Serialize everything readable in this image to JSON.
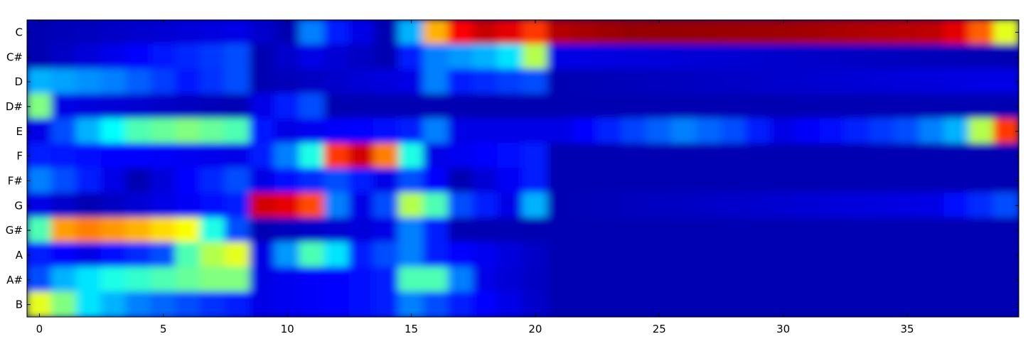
{
  "chart_data": {
    "type": "heatmap",
    "title": "",
    "xlabel": "",
    "ylabel": "",
    "xlim": [
      -0.5,
      39.5
    ],
    "x_ticks": [
      0,
      5,
      10,
      15,
      20,
      25,
      30,
      35
    ],
    "y_categories": [
      "C",
      "C#",
      "D",
      "D#",
      "E",
      "F",
      "F#",
      "G",
      "G#",
      "A",
      "A#",
      "B"
    ],
    "colormap": "jet",
    "interpolation": "bicubic",
    "grid": false,
    "legend": "none",
    "row_profiles": {
      "C": [
        [
          0,
          0.05
        ],
        [
          8,
          0.1
        ],
        [
          10,
          0.05
        ],
        [
          11,
          0.25
        ],
        [
          12,
          0.15
        ],
        [
          14,
          0.05
        ],
        [
          15,
          0.3
        ],
        [
          16,
          0.7
        ],
        [
          17,
          0.88
        ],
        [
          18,
          0.93
        ],
        [
          19,
          0.9
        ],
        [
          20,
          0.82
        ],
        [
          21,
          0.95
        ],
        [
          24,
          0.98
        ],
        [
          30,
          0.97
        ],
        [
          36,
          0.94
        ],
        [
          37,
          0.9
        ],
        [
          38,
          0.78
        ],
        [
          39,
          0.6
        ]
      ],
      "C#": [
        [
          0,
          0.05
        ],
        [
          8,
          0.2
        ],
        [
          9,
          0.05
        ],
        [
          11,
          0.1
        ],
        [
          14,
          0.05
        ],
        [
          16,
          0.25
        ],
        [
          18,
          0.3
        ],
        [
          19,
          0.35
        ],
        [
          20,
          0.55
        ],
        [
          21,
          0.1
        ],
        [
          39,
          0.05
        ]
      ],
      "D": [
        [
          0,
          0.3
        ],
        [
          3,
          0.25
        ],
        [
          6,
          0.15
        ],
        [
          8,
          0.2
        ],
        [
          9,
          0.05
        ],
        [
          15,
          0.1
        ],
        [
          16,
          0.25
        ],
        [
          17,
          0.15
        ],
        [
          20,
          0.2
        ],
        [
          21,
          0.05
        ],
        [
          39,
          0.1
        ]
      ],
      "D#": [
        [
          0,
          0.5
        ],
        [
          1,
          0.1
        ],
        [
          8,
          0.05
        ],
        [
          11,
          0.2
        ],
        [
          12,
          0.05
        ],
        [
          39,
          0.05
        ]
      ],
      "E": [
        [
          0,
          0.1
        ],
        [
          2,
          0.3
        ],
        [
          4,
          0.45
        ],
        [
          6,
          0.5
        ],
        [
          8,
          0.45
        ],
        [
          9,
          0.15
        ],
        [
          10,
          0.1
        ],
        [
          15,
          0.15
        ],
        [
          16,
          0.25
        ],
        [
          17,
          0.1
        ],
        [
          21,
          0.1
        ],
        [
          26,
          0.25
        ],
        [
          28,
          0.2
        ],
        [
          30,
          0.1
        ],
        [
          35,
          0.2
        ],
        [
          37,
          0.3
        ],
        [
          38,
          0.55
        ],
        [
          39,
          0.82
        ]
      ],
      "F": [
        [
          0,
          0.15
        ],
        [
          8,
          0.1
        ],
        [
          9,
          0.15
        ],
        [
          10,
          0.25
        ],
        [
          11,
          0.4
        ],
        [
          12,
          0.82
        ],
        [
          13,
          0.92
        ],
        [
          14,
          0.75
        ],
        [
          15,
          0.4
        ],
        [
          16,
          0.1
        ],
        [
          20,
          0.15
        ],
        [
          21,
          0.05
        ],
        [
          39,
          0.05
        ]
      ],
      "F#": [
        [
          0,
          0.25
        ],
        [
          2,
          0.15
        ],
        [
          4,
          0.05
        ],
        [
          8,
          0.2
        ],
        [
          9,
          0.1
        ],
        [
          12,
          0.2
        ],
        [
          14,
          0.1
        ],
        [
          15,
          0.2
        ],
        [
          17,
          0.05
        ],
        [
          20,
          0.15
        ],
        [
          21,
          0.05
        ],
        [
          39,
          0.05
        ]
      ],
      "G": [
        [
          0,
          0.1
        ],
        [
          2,
          0.05
        ],
        [
          8,
          0.15
        ],
        [
          9,
          0.92
        ],
        [
          10,
          0.9
        ],
        [
          11,
          0.8
        ],
        [
          12,
          0.25
        ],
        [
          13,
          0.1
        ],
        [
          14,
          0.2
        ],
        [
          15,
          0.55
        ],
        [
          16,
          0.45
        ],
        [
          17,
          0.2
        ],
        [
          19,
          0.1
        ],
        [
          20,
          0.3
        ],
        [
          21,
          0.05
        ],
        [
          36,
          0.1
        ],
        [
          39,
          0.2
        ]
      ],
      "G#": [
        [
          0,
          0.45
        ],
        [
          1,
          0.72
        ],
        [
          2,
          0.75
        ],
        [
          4,
          0.7
        ],
        [
          6,
          0.62
        ],
        [
          7,
          0.4
        ],
        [
          8,
          0.2
        ],
        [
          9,
          0.05
        ],
        [
          14,
          0.1
        ],
        [
          15,
          0.25
        ],
        [
          16,
          0.15
        ],
        [
          17,
          0.05
        ],
        [
          21,
          0.05
        ],
        [
          39,
          0.05
        ]
      ],
      "A": [
        [
          0,
          0.15
        ],
        [
          2,
          0.1
        ],
        [
          5,
          0.2
        ],
        [
          6,
          0.45
        ],
        [
          7,
          0.55
        ],
        [
          8,
          0.6
        ],
        [
          9,
          0.1
        ],
        [
          11,
          0.45
        ],
        [
          12,
          0.35
        ],
        [
          13,
          0.15
        ],
        [
          15,
          0.25
        ],
        [
          16,
          0.15
        ],
        [
          21,
          0.05
        ],
        [
          39,
          0.05
        ]
      ],
      "A#": [
        [
          0,
          0.2
        ],
        [
          1,
          0.3
        ],
        [
          2,
          0.35
        ],
        [
          3,
          0.4
        ],
        [
          5,
          0.45
        ],
        [
          7,
          0.5
        ],
        [
          8,
          0.5
        ],
        [
          9,
          0.1
        ],
        [
          14,
          0.15
        ],
        [
          15,
          0.45
        ],
        [
          16,
          0.45
        ],
        [
          17,
          0.25
        ],
        [
          18,
          0.1
        ],
        [
          21,
          0.05
        ],
        [
          39,
          0.05
        ]
      ],
      "B": [
        [
          0,
          0.6
        ],
        [
          1,
          0.5
        ],
        [
          2,
          0.35
        ],
        [
          4,
          0.25
        ],
        [
          6,
          0.2
        ],
        [
          8,
          0.15
        ],
        [
          9,
          0.1
        ],
        [
          14,
          0.15
        ],
        [
          15,
          0.25
        ],
        [
          17,
          0.15
        ],
        [
          21,
          0.05
        ],
        [
          39,
          0.05
        ]
      ]
    }
  }
}
